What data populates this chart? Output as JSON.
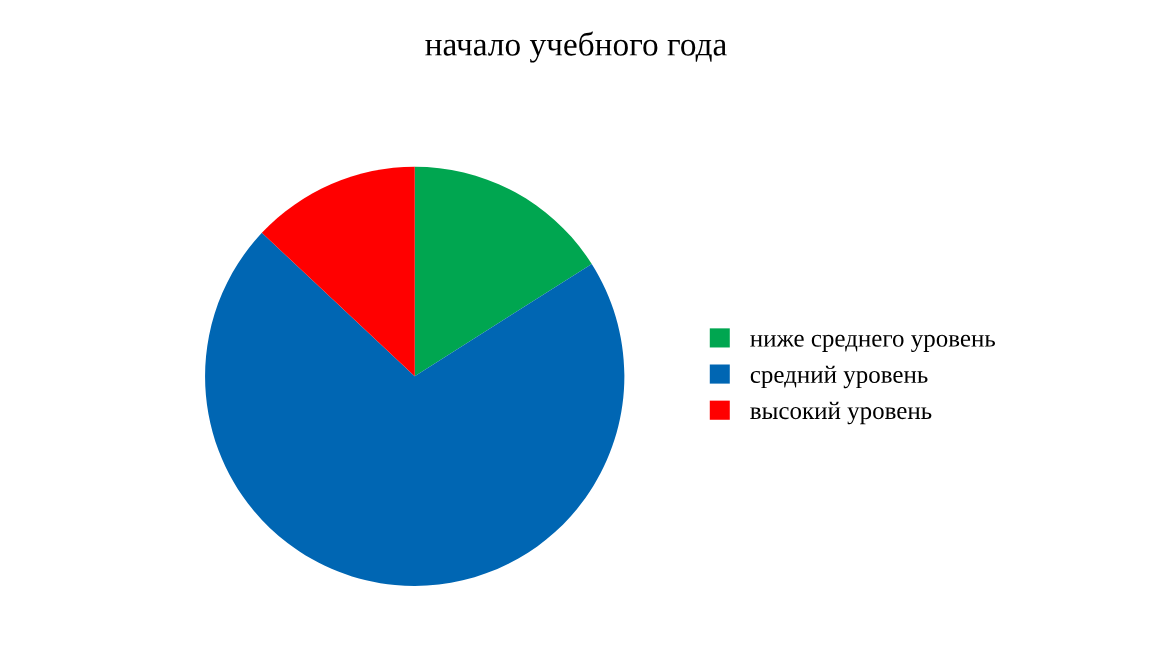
{
  "chart_data": {
    "type": "pie",
    "title": "начало учебного года",
    "categories": [
      "ниже среднего уровень",
      "средний уровень",
      "высокий уровень"
    ],
    "values": [
      16,
      71,
      13
    ],
    "colors": [
      "#00a650",
      "#0066b3",
      "#ff0000"
    ],
    "legend": "right"
  }
}
